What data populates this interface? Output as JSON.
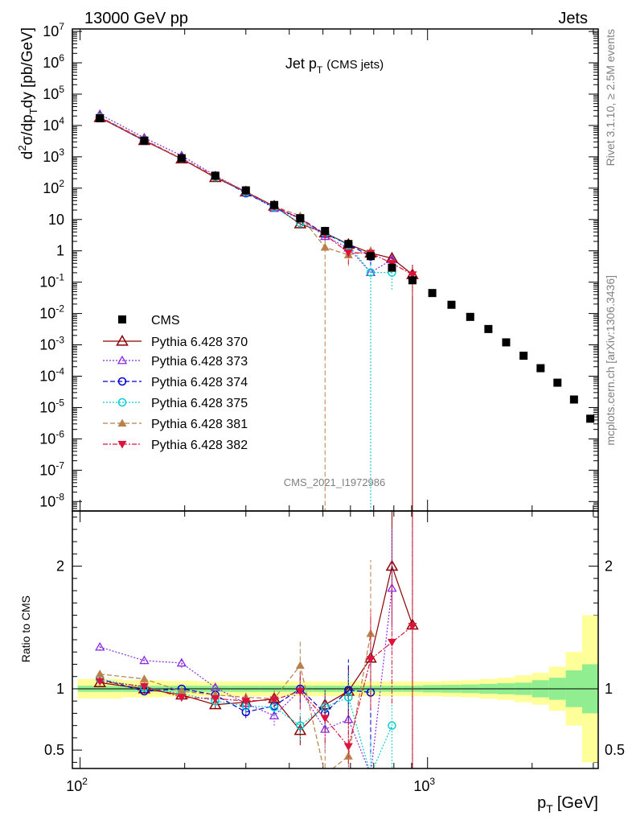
{
  "header": {
    "left": "13000 GeV pp",
    "right": "Jets",
    "side_top": "Rivet 3.1.10, ≥ 2.5M events",
    "side_bottom": "mcplots.cern.ch [arXiv:1306.3436]",
    "watermark": "CMS_2021_I1972986"
  },
  "chart_data": {
    "type": "scatter",
    "title": "Jet p_T (CMS jets)",
    "title_main": "Jet p",
    "title_sub": "T",
    "title_extra": "(CMS jets)",
    "xlabel": "p_T [GeV]",
    "xlabel_main": "p",
    "xlabel_sub": "T",
    "xlabel_unit": "[GeV]",
    "ylabel": "d^2σ/dp_T dy [pb/GeV]",
    "ylabel_parts": [
      "d",
      "2",
      "σ/dp",
      "T",
      "dy [pb/GeV]"
    ],
    "ratio_ylabel": "Ratio to CMS",
    "x_scale": "log",
    "y_scale": "log",
    "xlim": [
      95,
      3100
    ],
    "ylim": [
      5e-09,
      12000000.0
    ],
    "ratio_ylim": [
      0.35,
      2.45
    ],
    "x_ticklabels": [
      {
        "v": 100,
        "t": "10",
        "e": "2"
      },
      {
        "v": 1000,
        "t": "10",
        "e": "3"
      }
    ],
    "y_ticklabels": [
      {
        "v": 10000000.0,
        "t": "10",
        "e": "7"
      },
      {
        "v": 1000000.0,
        "t": "10",
        "e": "6"
      },
      {
        "v": 100000.0,
        "t": "10",
        "e": "5"
      },
      {
        "v": 10000.0,
        "t": "10",
        "e": "4"
      },
      {
        "v": 1000.0,
        "t": "10",
        "e": "3"
      },
      {
        "v": 100.0,
        "t": "10",
        "e": "2"
      },
      {
        "v": 10,
        "t": "10",
        "e": ""
      },
      {
        "v": 1,
        "t": "1",
        "e": ""
      },
      {
        "v": 0.1,
        "t": "10",
        "e": "-1"
      },
      {
        "v": 0.01,
        "t": "10",
        "e": "-2"
      },
      {
        "v": 0.001,
        "t": "10",
        "e": "-3"
      },
      {
        "v": 0.0001,
        "t": "10",
        "e": "-4"
      },
      {
        "v": 1e-05,
        "t": "10",
        "e": "-5"
      },
      {
        "v": 1e-06,
        "t": "10",
        "e": "-6"
      },
      {
        "v": 1e-07,
        "t": "10",
        "e": "-7"
      },
      {
        "v": 1e-08,
        "t": "10",
        "e": "-8"
      }
    ],
    "ratio_ticklabels": [
      {
        "v": 0.5,
        "t": "0.5"
      },
      {
        "v": 1,
        "t": "1"
      },
      {
        "v": 2,
        "t": "2"
      }
    ],
    "data": {
      "name": "CMS",
      "color": "#000000",
      "x": [
        114,
        153,
        196,
        245,
        300,
        362,
        430,
        507,
        592,
        686,
        790,
        905,
        1032,
        1172,
        1327,
        1497,
        1684,
        1890,
        2116,
        2366,
        2640,
        2941
      ],
      "y": [
        17000,
        3300,
        900,
        250,
        85,
        29,
        11,
        4.3,
        1.65,
        0.68,
        0.29,
        0.115,
        0.045,
        0.019,
        0.0078,
        0.0032,
        0.0012,
        0.00045,
        0.00018,
        6.2e-05,
        1.8e-05,
        4.4e-06
      ],
      "band_stat": [
        0.025,
        0.025,
        0.025,
        0.025,
        0.025,
        0.025,
        0.025,
        0.025,
        0.025,
        0.025,
        0.025,
        0.025,
        0.03,
        0.032,
        0.035,
        0.04,
        0.045,
        0.05,
        0.07,
        0.09,
        0.15,
        0.2
      ],
      "band_total": [
        0.08,
        0.07,
        0.065,
        0.06,
        0.06,
        0.06,
        0.06,
        0.06,
        0.06,
        0.06,
        0.06,
        0.06,
        0.06,
        0.065,
        0.07,
        0.08,
        0.09,
        0.11,
        0.13,
        0.18,
        0.3,
        0.6
      ]
    },
    "series": [
      {
        "name": "Pythia 6.428 370",
        "color": "#8b0000",
        "marker": "triangle-open",
        "dash": "",
        "x": [
          114,
          153,
          196,
          245,
          300,
          362,
          430,
          507,
          592,
          686,
          790,
          905
        ],
        "ratio": [
          1.05,
          1.0,
          0.95,
          0.87,
          0.89,
          0.92,
          0.66,
          0.87,
          0.98,
          1.25,
          2.0,
          1.52
        ],
        "err": [
          0.02,
          0.02,
          0.03,
          0.03,
          0.05,
          0.06,
          0.12,
          0.12,
          0.2,
          0.3,
          0.5,
          1.6
        ]
      },
      {
        "name": "Pythia 6.428 373",
        "color": "#8a2be2",
        "marker": "triangle-open-small",
        "dash": "2,2",
        "x": [
          114,
          153,
          196,
          245,
          300,
          362,
          430,
          507,
          592,
          686,
          790
        ],
        "ratio": [
          1.34,
          1.23,
          1.21,
          1.01,
          0.88,
          0.78,
          0.99,
          0.67,
          0.75,
          0.3,
          1.82
        ],
        "err": [
          0.03,
          0.03,
          0.04,
          0.04,
          0.06,
          0.08,
          0.15,
          0.18,
          0.2,
          0.3,
          0.5
        ]
      },
      {
        "name": "Pythia 6.428 374",
        "color": "#0000cd",
        "marker": "circle-open",
        "dash": "6,3",
        "x": [
          114,
          153,
          196,
          245,
          300,
          362,
          430,
          507,
          592,
          686
        ],
        "ratio": [
          1.08,
          0.98,
          1.0,
          0.95,
          0.81,
          0.86,
          1.0,
          0.8,
          0.99,
          0.97
        ],
        "err": [
          0.02,
          0.02,
          0.03,
          0.04,
          0.05,
          0.07,
          0.12,
          0.15,
          0.25,
          0.5
        ]
      },
      {
        "name": "Pythia 6.428 375",
        "color": "#00ced1",
        "marker": "circle-open",
        "dash": "2,2",
        "x": [
          114,
          153,
          196,
          245,
          300,
          362,
          430,
          507,
          592,
          686,
          790
        ],
        "ratio": [
          1.08,
          1.01,
          0.96,
          0.9,
          0.86,
          0.85,
          0.7,
          0.85,
          0.93,
          0.3,
          0.7
        ],
        "err": [
          0.02,
          0.02,
          0.03,
          0.04,
          0.05,
          0.07,
          0.12,
          0.15,
          0.2,
          0.3,
          0.5
        ]
      },
      {
        "name": "Pythia 6.428 381",
        "color": "#b8804a",
        "marker": "triangle-filled",
        "dash": "6,3",
        "x": [
          114,
          153,
          196,
          245,
          300,
          362,
          430,
          507,
          592,
          686
        ],
        "ratio": [
          1.12,
          1.08,
          0.98,
          0.95,
          0.93,
          0.92,
          1.19,
          0.3,
          0.45,
          1.45
        ],
        "err": [
          0.02,
          0.02,
          0.03,
          0.04,
          0.06,
          0.07,
          0.2,
          0.3,
          0.25,
          0.6
        ]
      },
      {
        "name": "Pythia 6.428 382",
        "color": "#dc143c",
        "marker": "triangle-down-filled",
        "dash": "6,2,2,2",
        "x": [
          114,
          153,
          196,
          245,
          300,
          362,
          430,
          507,
          592,
          686,
          790,
          905
        ],
        "ratio": [
          1.06,
          1.02,
          0.93,
          0.92,
          0.9,
          0.91,
          0.98,
          0.76,
          0.53,
          1.24,
          1.38,
          1.51
        ],
        "err": [
          0.02,
          0.02,
          0.03,
          0.04,
          0.06,
          0.06,
          0.15,
          0.2,
          0.3,
          0.4,
          0.5,
          1.2
        ]
      }
    ]
  }
}
